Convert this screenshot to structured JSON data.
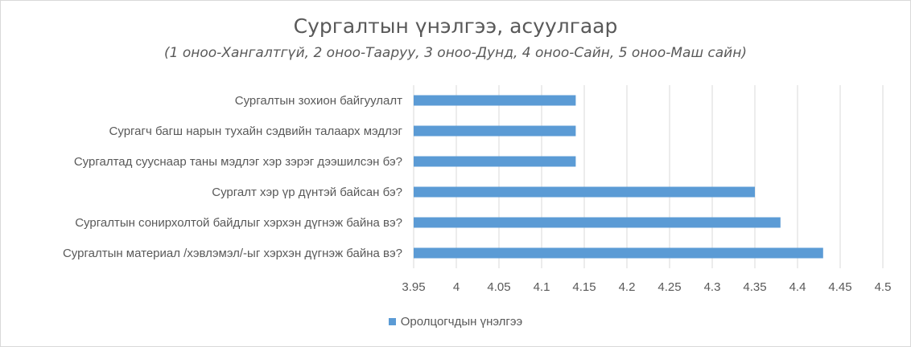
{
  "chart_data": {
    "type": "bar",
    "orientation": "horizontal",
    "title": "Сургалтын үнэлгээ, асуулгаар",
    "subtitle": "(1 оноо-Хангалтгүй, 2 оноо-Тааруу, 3 оноо-Дунд, 4 оноо-Сайн, 5 оноо-Маш сайн)",
    "categories": [
      "Сургалтын материал /хэвлэмэл/-ыг хэрхэн дүгнэж байна вэ?",
      "Сургалтын сонирхолтой байдлыг хэрхэн дүгнэж байна вэ?",
      "Сургалт хэр үр дүнтэй байсан бэ?",
      "Сургалтад сууснаар таны мэдлэг хэр зэрэг дээшилсэн бэ?",
      "Сургагч багш нарын тухайн сэдвийн талаарх мэдлэг",
      "Сургалтын зохион байгуулалт"
    ],
    "series": [
      {
        "name": "Оролцогчдын үнэлгээ",
        "values": [
          4.43,
          4.38,
          4.35,
          4.14,
          4.14,
          4.14
        ]
      }
    ],
    "xlim": [
      3.95,
      4.5
    ],
    "xticks": [
      "3.95",
      "4",
      "4.05",
      "4.1",
      "4.15",
      "4.2",
      "4.25",
      "4.3",
      "4.35",
      "4.4",
      "4.45",
      "4.5"
    ],
    "grid": "vertical",
    "legend_position": "bottom",
    "bar_color": "#5b9bd5"
  }
}
